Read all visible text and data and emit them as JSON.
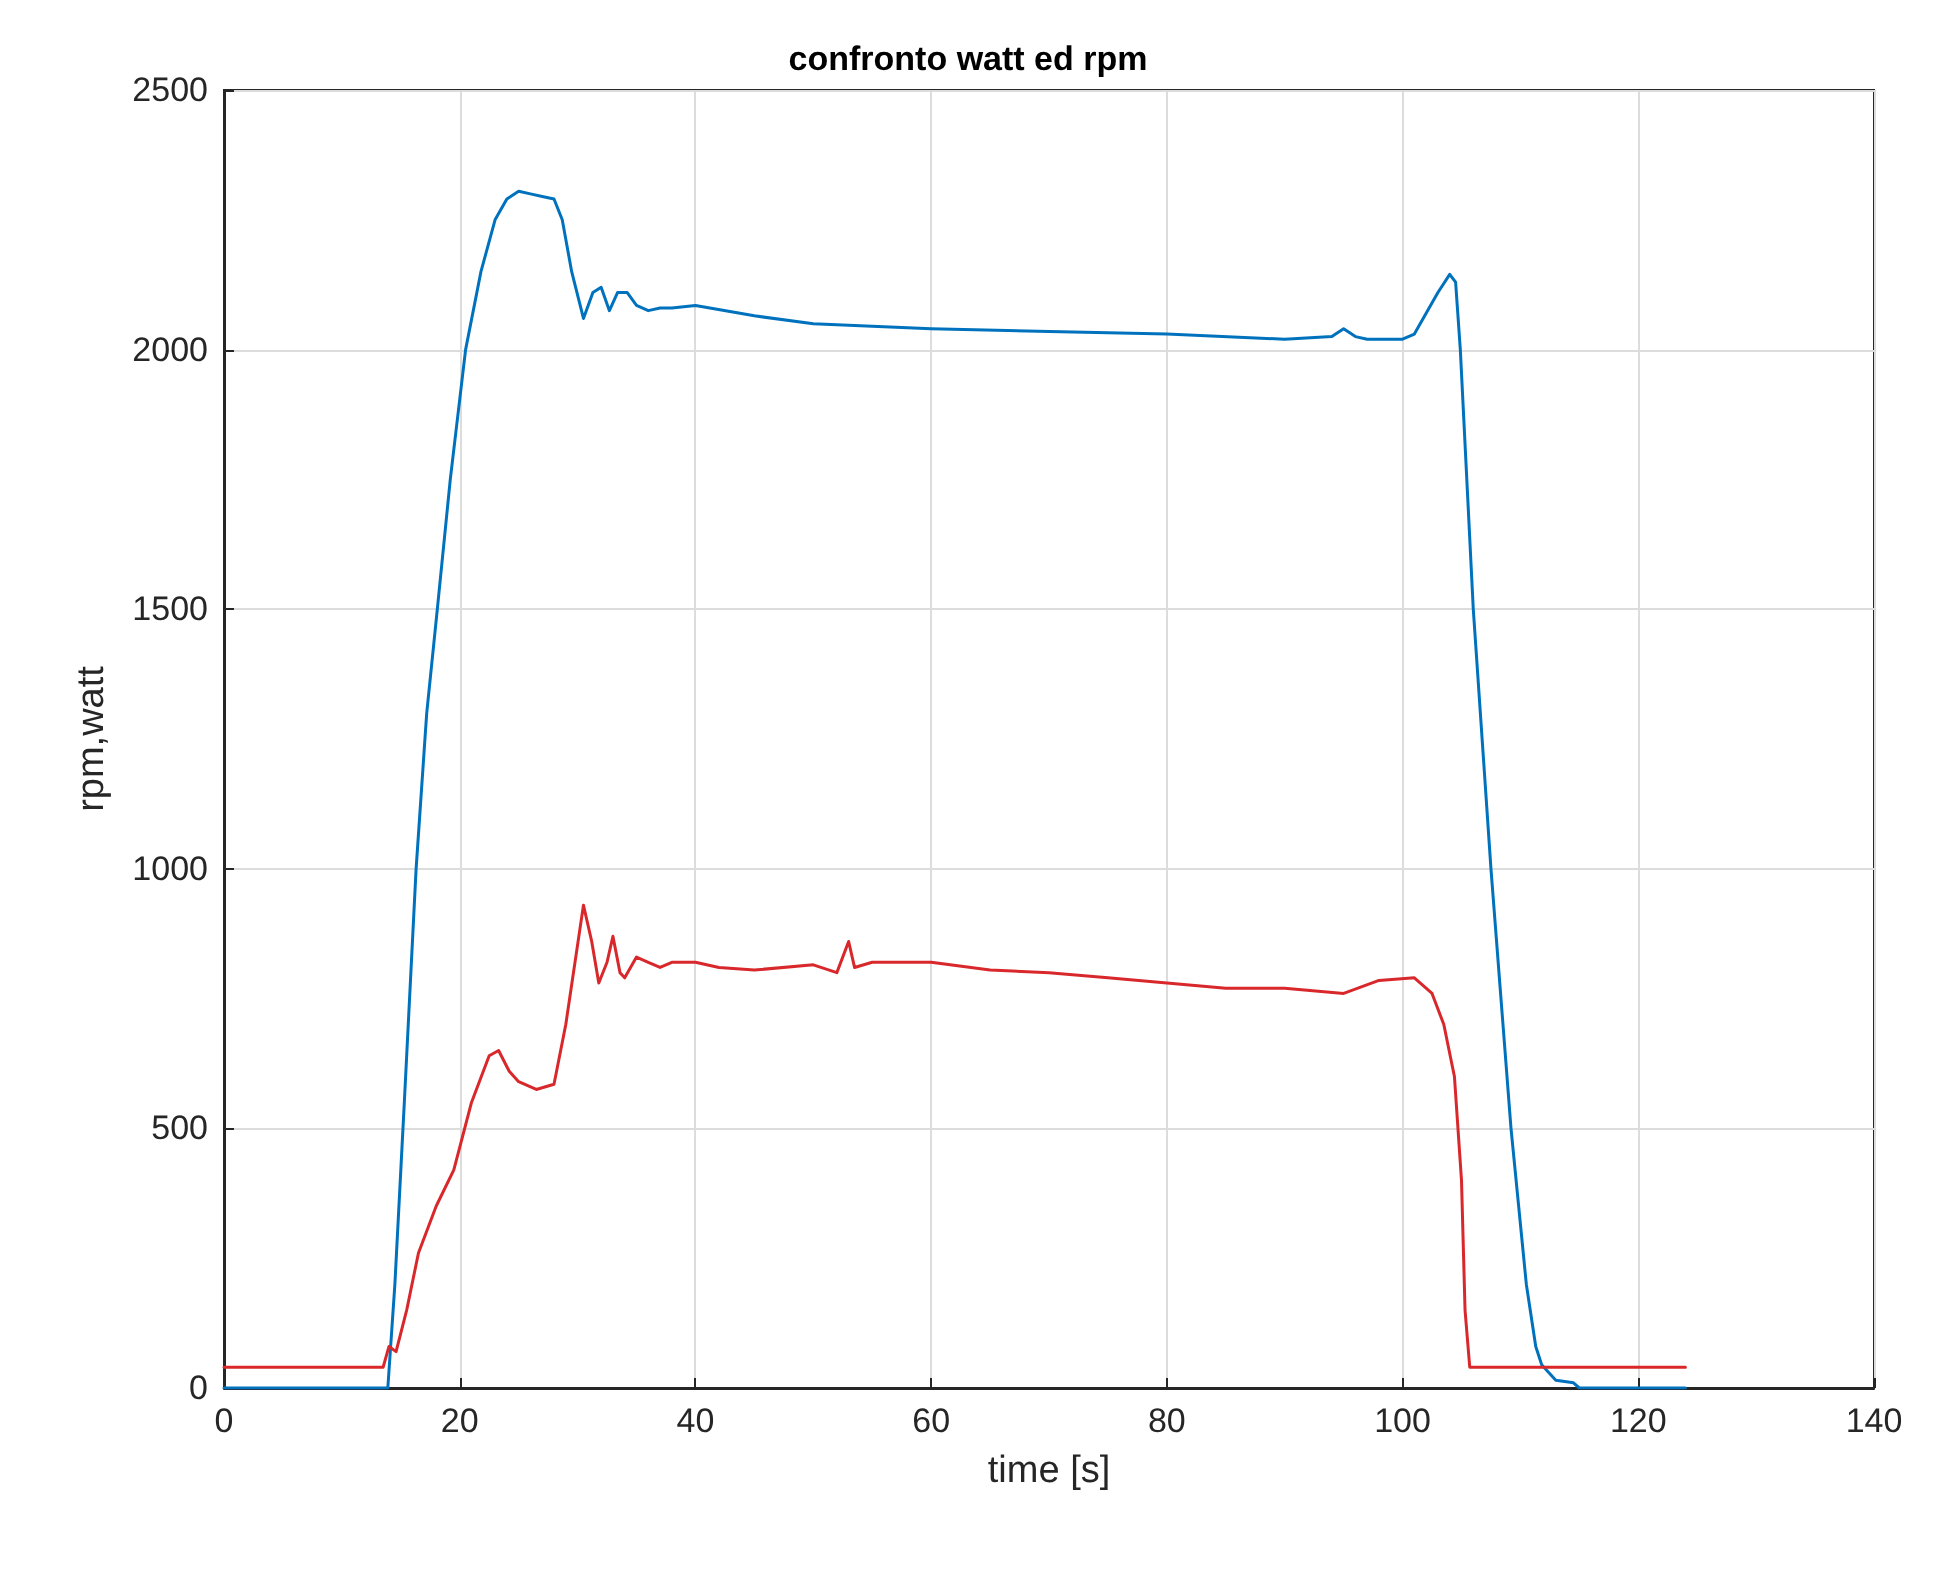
{
  "chart_data": {
    "type": "line",
    "title": "confronto watt ed rpm",
    "xlabel": "time [s]",
    "ylabel": "rpm,watt",
    "xlim": [
      0,
      140
    ],
    "xticks": [
      0,
      20,
      40,
      60,
      80,
      100,
      120,
      140
    ],
    "ylim": [
      0,
      2500
    ],
    "yticks": [
      0,
      500,
      1000,
      1500,
      2000,
      2500
    ],
    "grid": true,
    "marker": "none",
    "line_style": "solid",
    "series": [
      {
        "color": "#0072bd",
        "x": [
          0,
          13.9,
          14.5,
          15.3,
          16.3,
          17.2,
          18.1,
          19.2,
          20.5,
          21.8,
          23,
          24,
          25,
          26,
          27,
          28,
          28.7,
          29.5,
          30.5,
          31.3,
          32,
          32.7,
          33.4,
          34.2,
          35,
          36,
          37,
          38,
          40,
          45,
          50,
          60,
          70,
          80,
          90,
          94,
          95,
          96,
          97,
          100,
          101,
          102,
          103,
          104,
          104.5,
          104.9,
          106,
          107.5,
          109.2,
          110.5,
          111.3,
          111.8,
          113,
          114.5,
          115,
          124
        ],
        "values": [
          0,
          0,
          200,
          550,
          1000,
          1300,
          1500,
          1750,
          2000,
          2150,
          2250,
          2290,
          2305,
          2300,
          2295,
          2290,
          2250,
          2150,
          2060,
          2110,
          2120,
          2075,
          2110,
          2110,
          2085,
          2075,
          2080,
          2080,
          2085,
          2065,
          2050,
          2040,
          2035,
          2030,
          2020,
          2025,
          2040,
          2025,
          2020,
          2020,
          2030,
          2070,
          2110,
          2145,
          2130,
          2000,
          1500,
          1000,
          500,
          200,
          80,
          45,
          15,
          10,
          0,
          0
        ]
      },
      {
        "color": "#d9282b",
        "x": [
          0,
          13.5,
          14,
          14.6,
          15.5,
          16.5,
          18,
          19.5,
          21,
          22.5,
          23.3,
          24.2,
          25,
          26.5,
          28,
          29,
          30.5,
          31.2,
          31.8,
          32.5,
          33,
          33.6,
          34,
          35,
          36,
          37,
          38,
          40,
          42,
          45,
          50,
          52,
          53,
          53.5,
          55,
          60,
          65,
          70,
          75,
          80,
          85,
          90,
          95,
          98,
          101,
          102.5,
          103.5,
          104.4,
          105,
          105.3,
          105.7,
          110,
          124
        ],
        "values": [
          40,
          40,
          80,
          70,
          150,
          260,
          350,
          420,
          550,
          640,
          650,
          610,
          590,
          575,
          585,
          700,
          930,
          860,
          780,
          820,
          870,
          800,
          790,
          830,
          820,
          810,
          820,
          820,
          810,
          805,
          815,
          800,
          860,
          810,
          820,
          820,
          805,
          800,
          790,
          780,
          770,
          770,
          760,
          785,
          790,
          760,
          700,
          600,
          400,
          150,
          40,
          40,
          40
        ]
      }
    ]
  }
}
